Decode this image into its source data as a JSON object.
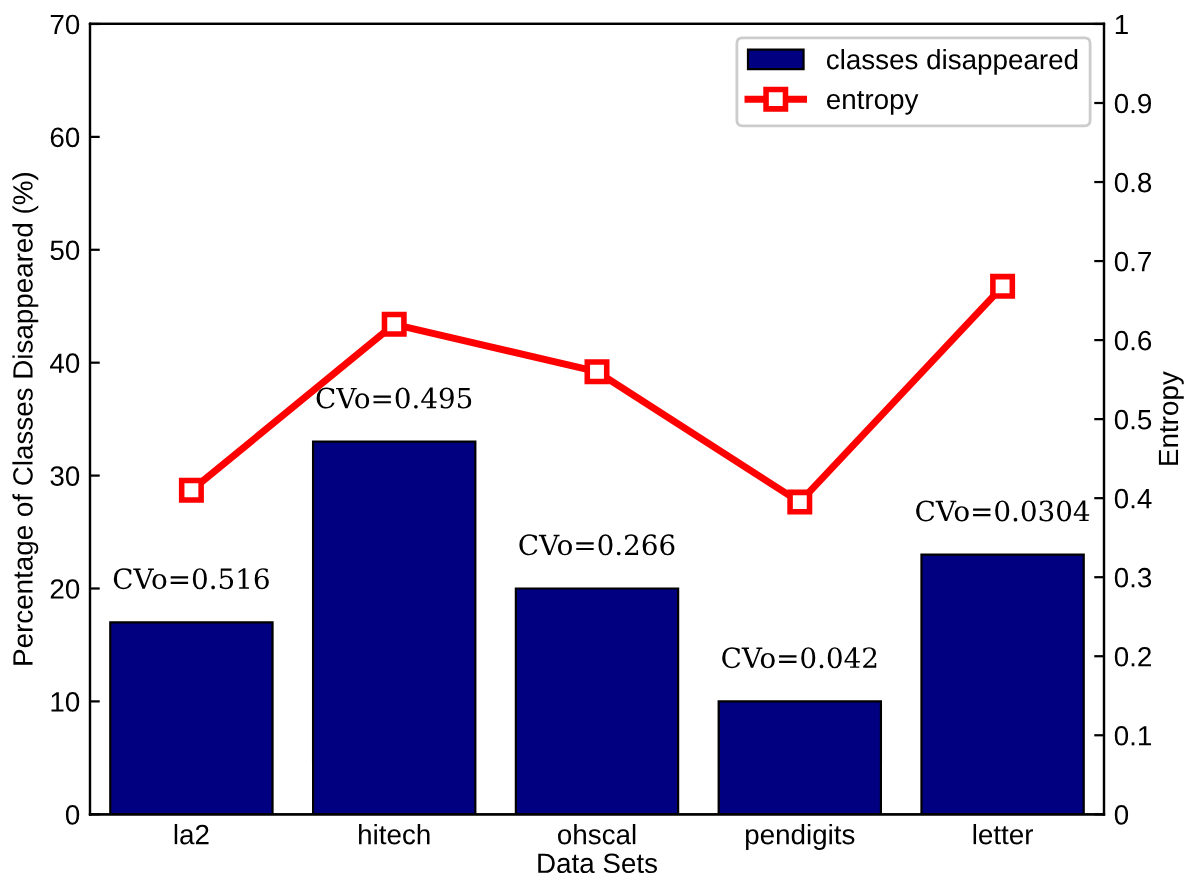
{
  "chart_data": {
    "type": "bar",
    "xlabel": "Data Sets",
    "ylabel": "Percentage of Classes Disappeared (%)",
    "y2label": "Entropy",
    "categories": [
      "la2",
      "hitech",
      "ohscal",
      "pendigits",
      "letter"
    ],
    "series": [
      {
        "name": "classes disappeared",
        "color": "#000080",
        "values": [
          17,
          33,
          20,
          10,
          23
        ]
      },
      {
        "name": "entropy",
        "type": "line",
        "axis": "y2",
        "color": "#ff0000",
        "marker": "square",
        "values": [
          0.41,
          0.62,
          0.56,
          0.395,
          0.668
        ]
      }
    ],
    "annotations": [
      {
        "text": "CVo=0.516",
        "x": "la2",
        "y": 17
      },
      {
        "text": "CVo=0.495",
        "x": "hitech",
        "y": 33
      },
      {
        "text": "CVo=0.266",
        "x": "ohscal",
        "y": 20
      },
      {
        "text": "CVo=0.042",
        "x": "pendigits",
        "y": 10
      },
      {
        "text": "CVo=0.0304",
        "x": "letter",
        "y": 23
      }
    ],
    "ylim": [
      0,
      70
    ],
    "yticks": [
      0,
      10,
      20,
      30,
      40,
      50,
      60,
      70
    ],
    "y2lim": [
      0,
      1
    ],
    "y2ticks": [
      0,
      0.1,
      0.2,
      0.3,
      0.4,
      0.5,
      0.6,
      0.7,
      0.8,
      0.9,
      1
    ],
    "legend": "top right",
    "grid": false
  }
}
